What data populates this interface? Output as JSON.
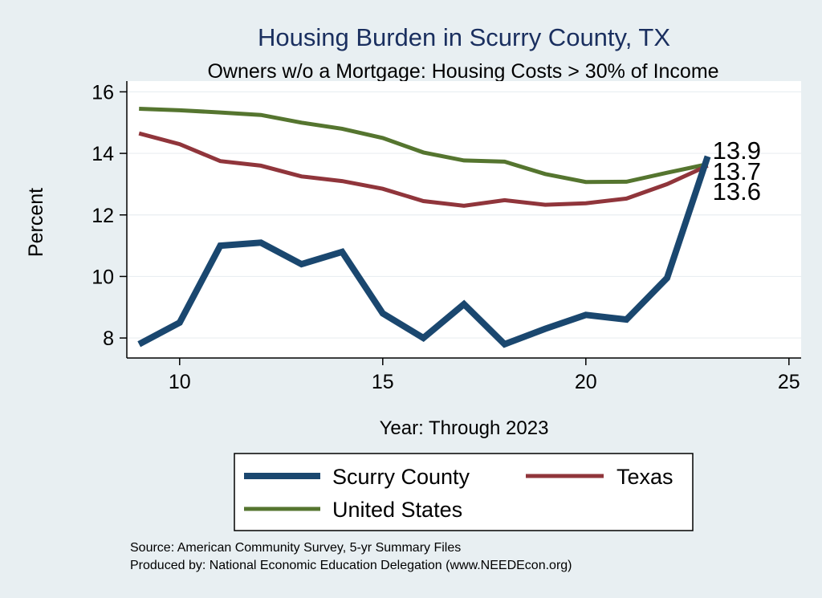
{
  "chart_data": {
    "type": "line",
    "title": "Housing Burden in Scurry County, TX",
    "subtitle": "Owners w/o a Mortgage: Housing Costs > 30% of Income",
    "xlabel": "Year: Through 2023",
    "ylabel": "Percent",
    "xlim": [
      8.7,
      25.3
    ],
    "ylim": [
      7.35,
      16.35
    ],
    "xticks": [
      10,
      15,
      20,
      25
    ],
    "yticks": [
      8,
      10,
      12,
      14,
      16
    ],
    "grid": true,
    "legend_position": "bottom",
    "x": [
      9,
      10,
      11,
      12,
      13,
      14,
      15,
      16,
      17,
      18,
      19,
      20,
      21,
      22,
      23
    ],
    "series": [
      {
        "name": "Scurry County",
        "color": "#1a476f",
        "values": [
          7.8,
          8.5,
          11.0,
          11.1,
          10.4,
          10.8,
          8.8,
          8.0,
          9.1,
          7.8,
          8.3,
          8.75,
          8.6,
          9.95,
          13.9
        ],
        "end_label": "13.9"
      },
      {
        "name": "Texas",
        "color": "#90353b",
        "values": [
          14.65,
          14.3,
          13.75,
          13.6,
          13.25,
          13.1,
          12.85,
          12.45,
          12.3,
          12.48,
          12.33,
          12.38,
          12.53,
          13.0,
          13.6
        ],
        "end_label": "13.6"
      },
      {
        "name": "United States",
        "color": "#55752f",
        "values": [
          15.45,
          15.4,
          15.33,
          15.25,
          15.0,
          14.8,
          14.5,
          14.03,
          13.77,
          13.73,
          13.33,
          13.07,
          13.08,
          13.37,
          13.65
        ],
        "end_label": "13.7"
      }
    ],
    "legend": [
      "Scurry County",
      "Texas",
      "United States"
    ],
    "notes": [
      "Source: American Community Survey, 5-yr Summary Files",
      "Produced by: National Economic Education Delegation (www.NEEDEcon.org)"
    ]
  },
  "colors": {
    "background": "#e8eff2",
    "plot_background": "#ffffff",
    "title": "#1a2f5f",
    "grid": "#e9eef1"
  }
}
